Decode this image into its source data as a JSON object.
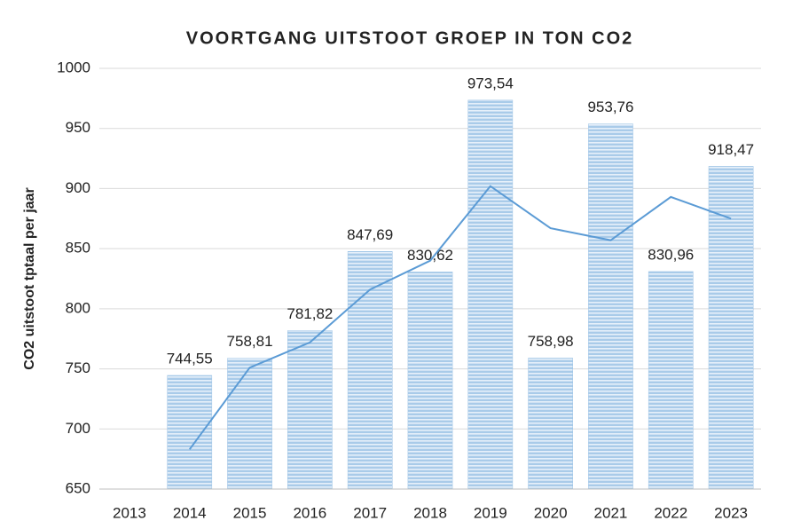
{
  "chart_data": {
    "type": "bar",
    "title": "VOORTGANG UITSTOOT GROEP IN TON CO2",
    "y_label": "CO2 uitstoot tptaal per jaar",
    "categories": [
      "2013",
      "2014",
      "2015",
      "2016",
      "2017",
      "2018",
      "2019",
      "2020",
      "2021",
      "2022",
      "2023"
    ],
    "series": [
      {
        "type": "bar",
        "color": "#5b9bd5",
        "values": [
          null,
          744.55,
          758.81,
          781.82,
          847.69,
          830.62,
          973.54,
          758.98,
          953.76,
          830.96,
          918.47
        ],
        "value_labels": [
          null,
          "744,55",
          "758,81",
          "781,82",
          "847,69",
          "830,62",
          "973,54",
          "758,98",
          "953,76",
          "830,96",
          "918,47"
        ]
      },
      {
        "type": "line",
        "color": "#5b9bd5",
        "values": [
          null,
          683,
          751,
          772,
          816,
          840,
          902,
          867,
          857,
          893,
          875
        ]
      }
    ],
    "ylim": [
      650,
      1000
    ],
    "yticks": [
      650,
      700,
      750,
      800,
      850,
      900,
      950,
      1000
    ],
    "grid": true
  }
}
